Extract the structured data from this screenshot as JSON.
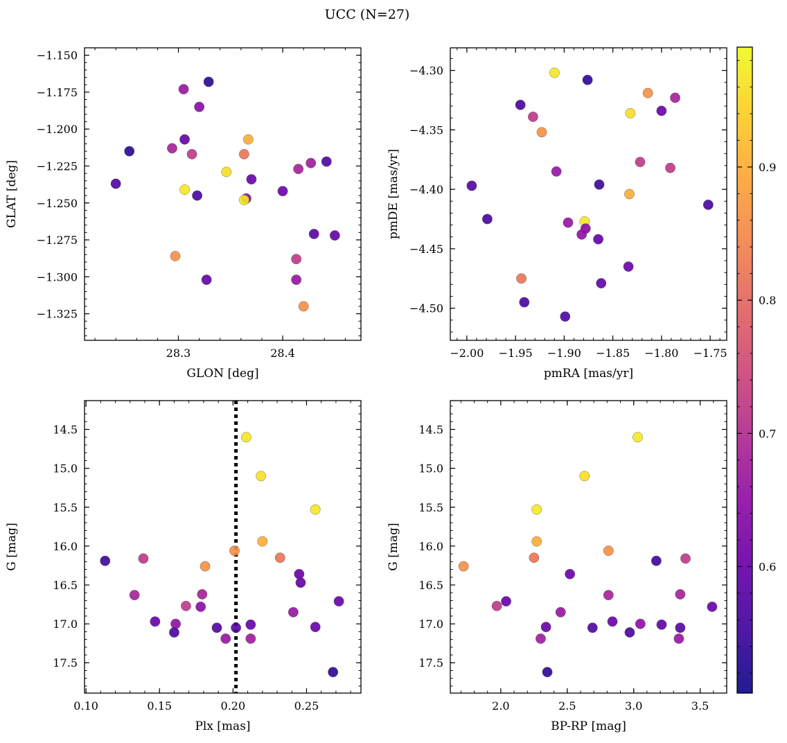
{
  "figure": {
    "title": "UCC (N=27)",
    "colorbar": {
      "cmap": "plasma",
      "range": [
        0.505,
        0.99
      ],
      "ticks": [
        0.6,
        0.7,
        0.8,
        0.9
      ],
      "tick_labels": [
        "0.6",
        "0.7",
        "0.8",
        "0.9"
      ]
    }
  },
  "chart_data": [
    {
      "type": "scatter",
      "name": "glon-glat",
      "xlabel": "GLON [deg]",
      "ylabel": "GLAT [deg]",
      "xlim": [
        28.21,
        28.475
      ],
      "ylim": [
        -1.343,
        -1.145
      ],
      "x_ticks": [
        28.3,
        28.4
      ],
      "x_tick_labels": [
        "28.3",
        "28.4"
      ],
      "y_ticks": [
        -1.15,
        -1.175,
        -1.2,
        -1.225,
        -1.25,
        -1.275,
        -1.3,
        -1.325
      ],
      "y_tick_labels": [
        "−1.150",
        "−1.175",
        "−1.200",
        "−1.225",
        "−1.250",
        "−1.275",
        "−1.300",
        "−1.325"
      ],
      "points": [
        {
          "x": 28.329,
          "y": -1.168,
          "c": 0.53
        },
        {
          "x": 28.305,
          "y": -1.173,
          "c": 0.66
        },
        {
          "x": 28.32,
          "y": -1.185,
          "c": 0.64
        },
        {
          "x": 28.306,
          "y": -1.207,
          "c": 0.59
        },
        {
          "x": 28.367,
          "y": -1.207,
          "c": 0.9
        },
        {
          "x": 28.253,
          "y": -1.215,
          "c": 0.53
        },
        {
          "x": 28.294,
          "y": -1.213,
          "c": 0.68
        },
        {
          "x": 28.313,
          "y": -1.217,
          "c": 0.72
        },
        {
          "x": 28.363,
          "y": -1.217,
          "c": 0.82
        },
        {
          "x": 28.442,
          "y": -1.222,
          "c": 0.57
        },
        {
          "x": 28.427,
          "y": -1.223,
          "c": 0.67
        },
        {
          "x": 28.415,
          "y": -1.227,
          "c": 0.68
        },
        {
          "x": 28.346,
          "y": -1.229,
          "c": 0.96
        },
        {
          "x": 28.37,
          "y": -1.234,
          "c": 0.6
        },
        {
          "x": 28.24,
          "y": -1.237,
          "c": 0.57
        },
        {
          "x": 28.306,
          "y": -1.241,
          "c": 0.97
        },
        {
          "x": 28.4,
          "y": -1.242,
          "c": 0.6
        },
        {
          "x": 28.318,
          "y": -1.245,
          "c": 0.56
        },
        {
          "x": 28.365,
          "y": -1.247,
          "c": 0.64
        },
        {
          "x": 28.363,
          "y": -1.248,
          "c": 0.97
        },
        {
          "x": 28.43,
          "y": -1.271,
          "c": 0.58
        },
        {
          "x": 28.45,
          "y": -1.272,
          "c": 0.59
        },
        {
          "x": 28.297,
          "y": -1.286,
          "c": 0.86
        },
        {
          "x": 28.413,
          "y": -1.288,
          "c": 0.72
        },
        {
          "x": 28.327,
          "y": -1.302,
          "c": 0.59
        },
        {
          "x": 28.413,
          "y": -1.302,
          "c": 0.66
        },
        {
          "x": 28.42,
          "y": -1.32,
          "c": 0.86
        }
      ]
    },
    {
      "type": "scatter",
      "name": "pmra-pmde",
      "xlabel": "pmRA [mas/yr]",
      "ylabel": "pmDE [mas/yr]",
      "xlim": [
        -2.017,
        -1.733
      ],
      "ylim": [
        -4.527,
        -4.281
      ],
      "x_ticks": [
        -2.0,
        -1.95,
        -1.9,
        -1.85,
        -1.8,
        -1.75
      ],
      "x_tick_labels": [
        "−2.00",
        "−1.95",
        "−1.90",
        "−1.85",
        "−1.80",
        "−1.75"
      ],
      "y_ticks": [
        -4.3,
        -4.35,
        -4.4,
        -4.45,
        -4.5
      ],
      "y_tick_labels": [
        "−4.30",
        "−4.35",
        "−4.40",
        "−4.45",
        "−4.50"
      ],
      "points": [
        {
          "x": -1.91,
          "y": -4.302,
          "c": 0.97
        },
        {
          "x": -1.876,
          "y": -4.308,
          "c": 0.53
        },
        {
          "x": -1.814,
          "y": -4.319,
          "c": 0.86
        },
        {
          "x": -1.786,
          "y": -4.323,
          "c": 0.68
        },
        {
          "x": -1.945,
          "y": -4.329,
          "c": 0.56
        },
        {
          "x": -1.8,
          "y": -4.334,
          "c": 0.6
        },
        {
          "x": -1.832,
          "y": -4.336,
          "c": 0.96
        },
        {
          "x": -1.932,
          "y": -4.339,
          "c": 0.72
        },
        {
          "x": -1.923,
          "y": -4.352,
          "c": 0.86
        },
        {
          "x": -1.822,
          "y": -4.377,
          "c": 0.72
        },
        {
          "x": -1.791,
          "y": -4.382,
          "c": 0.72
        },
        {
          "x": -1.908,
          "y": -4.385,
          "c": 0.66
        },
        {
          "x": -1.995,
          "y": -4.397,
          "c": 0.57
        },
        {
          "x": -1.864,
          "y": -4.396,
          "c": 0.55
        },
        {
          "x": -1.833,
          "y": -4.404,
          "c": 0.9
        },
        {
          "x": -1.752,
          "y": -4.413,
          "c": 0.56
        },
        {
          "x": -1.979,
          "y": -4.425,
          "c": 0.56
        },
        {
          "x": -1.879,
          "y": -4.427,
          "c": 0.97
        },
        {
          "x": -1.896,
          "y": -4.428,
          "c": 0.66
        },
        {
          "x": -1.878,
          "y": -4.433,
          "c": 0.64
        },
        {
          "x": -1.882,
          "y": -4.438,
          "c": 0.65
        },
        {
          "x": -1.865,
          "y": -4.442,
          "c": 0.59
        },
        {
          "x": -1.834,
          "y": -4.465,
          "c": 0.6
        },
        {
          "x": -1.944,
          "y": -4.475,
          "c": 0.82
        },
        {
          "x": -1.862,
          "y": -4.479,
          "c": 0.59
        },
        {
          "x": -1.941,
          "y": -4.495,
          "c": 0.56
        },
        {
          "x": -1.899,
          "y": -4.507,
          "c": 0.57
        }
      ]
    },
    {
      "type": "scatter",
      "name": "plx-g",
      "xlabel": "Plx [mas]",
      "ylabel": "G [mag]",
      "xlim": [
        0.099,
        0.287
      ],
      "ylim": [
        17.89,
        14.13
      ],
      "y_inverted": true,
      "vline": {
        "x": 0.202,
        "style": "dotted"
      },
      "x_ticks": [
        0.1,
        0.15,
        0.2,
        0.25
      ],
      "x_tick_labels": [
        "0.10",
        "0.15",
        "0.20",
        "0.25"
      ],
      "y_ticks": [
        14.5,
        15.0,
        15.5,
        16.0,
        16.5,
        17.0,
        17.5
      ],
      "y_tick_labels": [
        "14.5",
        "15.0",
        "15.5",
        "16.0",
        "16.5",
        "17.0",
        "17.5"
      ],
      "points": [
        {
          "x": 0.209,
          "y": 14.6,
          "c": 0.97
        },
        {
          "x": 0.219,
          "y": 15.1,
          "c": 0.96
        },
        {
          "x": 0.256,
          "y": 15.53,
          "c": 0.97
        },
        {
          "x": 0.22,
          "y": 15.94,
          "c": 0.9
        },
        {
          "x": 0.201,
          "y": 16.06,
          "c": 0.86
        },
        {
          "x": 0.232,
          "y": 16.15,
          "c": 0.82
        },
        {
          "x": 0.139,
          "y": 16.16,
          "c": 0.72
        },
        {
          "x": 0.113,
          "y": 16.19,
          "c": 0.55
        },
        {
          "x": 0.181,
          "y": 16.26,
          "c": 0.86
        },
        {
          "x": 0.245,
          "y": 16.36,
          "c": 0.6
        },
        {
          "x": 0.246,
          "y": 16.47,
          "c": 0.59
        },
        {
          "x": 0.179,
          "y": 16.62,
          "c": 0.68
        },
        {
          "x": 0.133,
          "y": 16.63,
          "c": 0.68
        },
        {
          "x": 0.272,
          "y": 16.71,
          "c": 0.6
        },
        {
          "x": 0.168,
          "y": 16.77,
          "c": 0.72
        },
        {
          "x": 0.178,
          "y": 16.78,
          "c": 0.64
        },
        {
          "x": 0.241,
          "y": 16.85,
          "c": 0.66
        },
        {
          "x": 0.147,
          "y": 16.97,
          "c": 0.6
        },
        {
          "x": 0.161,
          "y": 17.0,
          "c": 0.65
        },
        {
          "x": 0.212,
          "y": 17.01,
          "c": 0.59
        },
        {
          "x": 0.256,
          "y": 17.04,
          "c": 0.6
        },
        {
          "x": 0.189,
          "y": 17.05,
          "c": 0.57
        },
        {
          "x": 0.202,
          "y": 17.05,
          "c": 0.58
        },
        {
          "x": 0.16,
          "y": 17.11,
          "c": 0.56
        },
        {
          "x": 0.195,
          "y": 17.19,
          "c": 0.66
        },
        {
          "x": 0.212,
          "y": 17.19,
          "c": 0.67
        },
        {
          "x": 0.268,
          "y": 17.62,
          "c": 0.53
        }
      ]
    },
    {
      "type": "scatter",
      "name": "bprp-g",
      "xlabel": "BP-RP [mag]",
      "ylabel": "G [mag]",
      "xlim": [
        1.62,
        3.7
      ],
      "ylim": [
        17.89,
        14.13
      ],
      "y_inverted": true,
      "x_ticks": [
        2.0,
        2.5,
        3.0,
        3.5
      ],
      "x_tick_labels": [
        "2.0",
        "2.5",
        "3.0",
        "3.5"
      ],
      "y_ticks": [
        14.5,
        15.0,
        15.5,
        16.0,
        16.5,
        17.0,
        17.5
      ],
      "y_tick_labels": [
        "14.5",
        "15.0",
        "15.5",
        "16.0",
        "16.5",
        "17.0",
        "17.5"
      ],
      "points": [
        {
          "x": 3.03,
          "y": 14.6,
          "c": 0.97
        },
        {
          "x": 2.63,
          "y": 15.1,
          "c": 0.96
        },
        {
          "x": 2.27,
          "y": 15.53,
          "c": 0.97
        },
        {
          "x": 2.27,
          "y": 15.94,
          "c": 0.9
        },
        {
          "x": 2.81,
          "y": 16.06,
          "c": 0.86
        },
        {
          "x": 2.25,
          "y": 16.15,
          "c": 0.82
        },
        {
          "x": 3.39,
          "y": 16.16,
          "c": 0.72
        },
        {
          "x": 3.17,
          "y": 16.19,
          "c": 0.55
        },
        {
          "x": 1.72,
          "y": 16.26,
          "c": 0.86
        },
        {
          "x": 2.52,
          "y": 16.36,
          "c": 0.6
        },
        {
          "x": 2.81,
          "y": 16.63,
          "c": 0.68
        },
        {
          "x": 3.35,
          "y": 16.62,
          "c": 0.68
        },
        {
          "x": 2.04,
          "y": 16.71,
          "c": 0.6
        },
        {
          "x": 1.97,
          "y": 16.77,
          "c": 0.72
        },
        {
          "x": 3.59,
          "y": 16.78,
          "c": 0.6
        },
        {
          "x": 2.45,
          "y": 16.85,
          "c": 0.66
        },
        {
          "x": 2.84,
          "y": 16.97,
          "c": 0.6
        },
        {
          "x": 3.05,
          "y": 17.0,
          "c": 0.65
        },
        {
          "x": 3.21,
          "y": 17.01,
          "c": 0.59
        },
        {
          "x": 2.34,
          "y": 17.04,
          "c": 0.6
        },
        {
          "x": 2.69,
          "y": 17.05,
          "c": 0.57
        },
        {
          "x": 3.35,
          "y": 17.05,
          "c": 0.58
        },
        {
          "x": 2.97,
          "y": 17.11,
          "c": 0.56
        },
        {
          "x": 2.3,
          "y": 17.19,
          "c": 0.67
        },
        {
          "x": 3.34,
          "y": 17.19,
          "c": 0.66
        },
        {
          "x": 2.35,
          "y": 17.62,
          "c": 0.53
        }
      ]
    }
  ]
}
